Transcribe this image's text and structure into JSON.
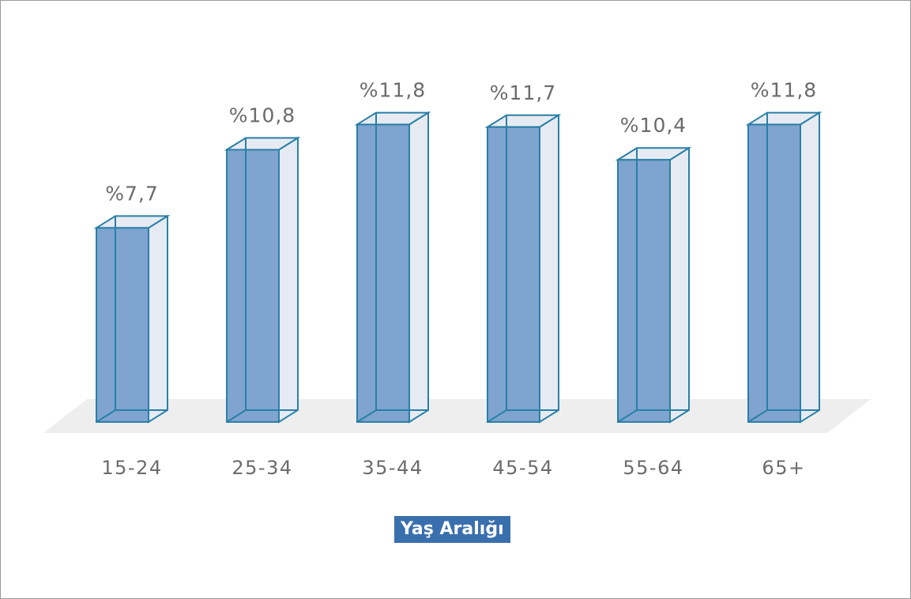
{
  "chart_data": {
    "type": "bar",
    "categories": [
      "15-24",
      "25-34",
      "35-44",
      "45-54",
      "55-64",
      "65+"
    ],
    "values": [
      7.7,
      10.8,
      11.8,
      11.7,
      10.4,
      11.8
    ],
    "value_labels": [
      "%7,7",
      "%10,8",
      "%11,8",
      "%11,7",
      "%10,4",
      "%11,8"
    ],
    "title": "",
    "xlabel": "Yaş Aralığı",
    "ylabel": "",
    "ylim": [
      0,
      11.8
    ],
    "grid": false,
    "style": "3d",
    "colors": {
      "bar_fill": "#7ea4cf",
      "bar_stroke": "#2a7fa6",
      "bar_back": "#e6ebf3",
      "floor": "#eeeeee",
      "xlabel_background": "#3a6fae"
    }
  }
}
